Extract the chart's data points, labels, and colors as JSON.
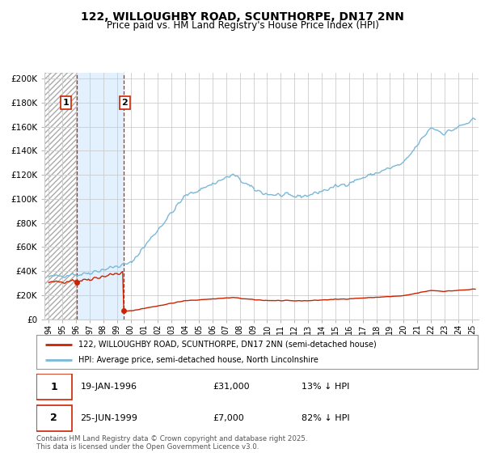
{
  "title": "122, WILLOUGHBY ROAD, SCUNTHORPE, DN17 2NN",
  "subtitle": "Price paid vs. HM Land Registry's House Price Index (HPI)",
  "title_fontsize": 10,
  "subtitle_fontsize": 8.5,
  "ylabel_ticks": [
    "£0",
    "£20K",
    "£40K",
    "£60K",
    "£80K",
    "£100K",
    "£120K",
    "£140K",
    "£160K",
    "£180K",
    "£200K"
  ],
  "ytick_values": [
    0,
    20000,
    40000,
    60000,
    80000,
    100000,
    120000,
    140000,
    160000,
    180000,
    200000
  ],
  "ylim": [
    0,
    205000
  ],
  "xlim_start": 1993.7,
  "xlim_end": 2025.5,
  "hpi_color": "#7ab8d9",
  "price_color": "#cc2200",
  "transaction1_date": 1996.05,
  "transaction1_price": 31000,
  "transaction2_date": 1999.48,
  "transaction2_price": 7000,
  "shaded_start": 1996.05,
  "shaded_end": 1999.48,
  "hatched_end": 1996.05,
  "legend_label1": "122, WILLOUGHBY ROAD, SCUNTHORPE, DN17 2NN (semi-detached house)",
  "legend_label2": "HPI: Average price, semi-detached house, North Lincolnshire",
  "annotation1_label": "1",
  "annotation2_label": "2",
  "table_row1": [
    "1",
    "19-JAN-1996",
    "£31,000",
    "13% ↓ HPI"
  ],
  "table_row2": [
    "2",
    "25-JUN-1999",
    "£7,000",
    "82% ↓ HPI"
  ],
  "footer": "Contains HM Land Registry data © Crown copyright and database right 2025.\nThis data is licensed under the Open Government Licence v3.0.",
  "background_color": "#ffffff",
  "plot_bg_color": "#ffffff",
  "shaded_region_color": "#ddeeff",
  "grid_color": "#cccccc"
}
